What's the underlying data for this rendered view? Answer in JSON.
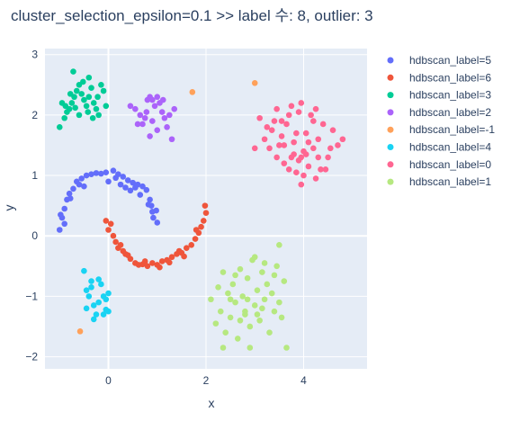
{
  "chart_data": {
    "type": "scatter",
    "title": "cluster_selection_epsilon=0.1 >> label 수: 8, outlier: 3",
    "xlabel": "x",
    "ylabel": "y",
    "xlim": [
      -1.3,
      5.3
    ],
    "ylim": [
      -2.2,
      3.1
    ],
    "x_ticks": [
      0,
      2,
      4
    ],
    "y_ticks": [
      -2,
      -1,
      0,
      1,
      2,
      3
    ],
    "grid": true,
    "legend_position": "right",
    "series": [
      {
        "name": "hdbscan_label=5",
        "color": "#636efa",
        "points": [
          [
            -1.0,
            0.1
          ],
          [
            -0.95,
            0.3
          ],
          [
            -0.9,
            0.45
          ],
          [
            -0.85,
            0.6
          ],
          [
            -0.8,
            0.7
          ],
          [
            -0.72,
            0.78
          ],
          [
            -0.65,
            0.9
          ],
          [
            -0.55,
            0.95
          ],
          [
            -0.45,
            1.0
          ],
          [
            -0.35,
            1.02
          ],
          [
            -0.25,
            1.04
          ],
          [
            -0.15,
            1.03
          ],
          [
            -0.05,
            1.05
          ],
          [
            0.1,
            1.08
          ],
          [
            0.2,
            1.02
          ],
          [
            0.3,
            0.98
          ],
          [
            0.4,
            0.92
          ],
          [
            0.5,
            0.88
          ],
          [
            0.6,
            0.85
          ],
          [
            0.7,
            0.82
          ],
          [
            0.78,
            0.76
          ],
          [
            0.85,
            0.6
          ],
          [
            0.88,
            0.5
          ],
          [
            0.9,
            0.4
          ],
          [
            0.92,
            0.3
          ],
          [
            0.98,
            0.42
          ],
          [
            1.0,
            0.22
          ],
          [
            -0.9,
            0.2
          ],
          [
            -0.78,
            0.62
          ],
          [
            -0.6,
            0.85
          ],
          [
            0.0,
            0.9
          ],
          [
            0.25,
            0.85
          ],
          [
            0.45,
            0.75
          ],
          [
            0.55,
            0.8
          ],
          [
            0.65,
            0.68
          ],
          [
            0.82,
            0.52
          ],
          [
            -0.98,
            0.35
          ],
          [
            -0.5,
            0.82
          ],
          [
            0.15,
            0.96
          ],
          [
            0.35,
            0.8
          ]
        ]
      },
      {
        "name": "hdbscan_label=6",
        "color": "#ef553b",
        "points": [
          [
            -0.05,
            0.25
          ],
          [
            0.0,
            0.1
          ],
          [
            0.1,
            0.0
          ],
          [
            0.15,
            -0.1
          ],
          [
            0.2,
            -0.2
          ],
          [
            0.3,
            -0.25
          ],
          [
            0.35,
            -0.3
          ],
          [
            0.45,
            -0.38
          ],
          [
            0.55,
            -0.45
          ],
          [
            0.62,
            -0.48
          ],
          [
            0.7,
            -0.47
          ],
          [
            0.8,
            -0.5
          ],
          [
            0.9,
            -0.45
          ],
          [
            1.0,
            -0.48
          ],
          [
            1.1,
            -0.42
          ],
          [
            1.2,
            -0.4
          ],
          [
            1.3,
            -0.35
          ],
          [
            1.4,
            -0.3
          ],
          [
            1.5,
            -0.28
          ],
          [
            1.6,
            -0.2
          ],
          [
            1.7,
            -0.15
          ],
          [
            1.78,
            -0.05
          ],
          [
            1.85,
            0.05
          ],
          [
            1.9,
            0.15
          ],
          [
            1.95,
            0.25
          ],
          [
            2.0,
            0.38
          ],
          [
            1.98,
            0.5
          ],
          [
            0.25,
            -0.15
          ],
          [
            0.4,
            -0.32
          ],
          [
            0.75,
            -0.42
          ],
          [
            1.05,
            -0.52
          ],
          [
            1.25,
            -0.44
          ],
          [
            1.45,
            -0.25
          ],
          [
            1.55,
            -0.34
          ],
          [
            1.8,
            0.1
          ],
          [
            0.05,
            0.2
          ]
        ]
      },
      {
        "name": "hdbscan_label=3",
        "color": "#00cc96",
        "points": [
          [
            -0.8,
            2.1
          ],
          [
            -0.75,
            2.2
          ],
          [
            -0.7,
            2.3
          ],
          [
            -0.65,
            2.4
          ],
          [
            -0.6,
            2.5
          ],
          [
            -0.55,
            2.35
          ],
          [
            -0.5,
            2.25
          ],
          [
            -0.45,
            2.15
          ],
          [
            -0.4,
            2.3
          ],
          [
            -0.35,
            2.45
          ],
          [
            -0.3,
            2.2
          ],
          [
            -0.25,
            2.1
          ],
          [
            -0.2,
            2.0
          ],
          [
            -0.15,
            2.5
          ],
          [
            -0.1,
            2.4
          ],
          [
            -0.05,
            2.15
          ],
          [
            -0.85,
            2.05
          ],
          [
            -0.9,
            1.95
          ],
          [
            -1.0,
            1.8
          ],
          [
            -0.95,
            2.2
          ],
          [
            -0.72,
            2.72
          ],
          [
            -0.6,
            2.0
          ],
          [
            -0.42,
            2.05
          ],
          [
            -0.32,
            1.95
          ],
          [
            -0.22,
            2.3
          ],
          [
            -0.68,
            2.12
          ],
          [
            -0.52,
            2.55
          ],
          [
            -0.78,
            2.35
          ],
          [
            -0.4,
            2.62
          ],
          [
            -0.88,
            2.15
          ]
        ]
      },
      {
        "name": "hdbscan_label=2",
        "color": "#ab63fa",
        "points": [
          [
            0.45,
            2.15
          ],
          [
            0.55,
            2.1
          ],
          [
            0.65,
            2.0
          ],
          [
            0.7,
            1.85
          ],
          [
            0.75,
            1.95
          ],
          [
            0.8,
            2.25
          ],
          [
            0.85,
            2.3
          ],
          [
            0.9,
            2.25
          ],
          [
            0.95,
            2.15
          ],
          [
            1.0,
            2.3
          ],
          [
            1.05,
            2.2
          ],
          [
            1.1,
            2.05
          ],
          [
            1.15,
            1.95
          ],
          [
            1.2,
            1.8
          ],
          [
            1.3,
            1.6
          ],
          [
            0.6,
            1.85
          ],
          [
            0.85,
            1.65
          ],
          [
            1.0,
            1.75
          ],
          [
            1.25,
            2.0
          ],
          [
            0.9,
            1.9
          ],
          [
            1.35,
            2.1
          ],
          [
            0.78,
            2.05
          ],
          [
            1.12,
            2.25
          ]
        ]
      },
      {
        "name": "hdbscan_label=-1",
        "color": "#ffa15a",
        "points": [
          [
            1.72,
            2.38
          ],
          [
            3.0,
            2.53
          ],
          [
            -0.58,
            -1.58
          ]
        ]
      },
      {
        "name": "hdbscan_label=4",
        "color": "#19d3f3",
        "points": [
          [
            -0.5,
            -0.58
          ],
          [
            -0.45,
            -0.9
          ],
          [
            -0.4,
            -1.0
          ],
          [
            -0.35,
            -0.85
          ],
          [
            -0.3,
            -1.15
          ],
          [
            -0.25,
            -1.3
          ],
          [
            -0.2,
            -1.1
          ],
          [
            -0.15,
            -0.8
          ],
          [
            -0.1,
            -1.0
          ],
          [
            -0.05,
            -1.05
          ],
          [
            0.0,
            -0.95
          ],
          [
            0.0,
            -1.25
          ],
          [
            -0.45,
            -1.2
          ],
          [
            -0.3,
            -1.38
          ],
          [
            -0.1,
            -1.3
          ],
          [
            -0.2,
            -0.72
          ],
          [
            -0.35,
            -0.75
          ],
          [
            -0.05,
            -1.22
          ]
        ]
      },
      {
        "name": "hdbscan_label=0",
        "color": "#ff6692",
        "points": [
          [
            3.1,
            1.95
          ],
          [
            3.2,
            1.6
          ],
          [
            3.25,
            1.8
          ],
          [
            3.3,
            1.45
          ],
          [
            3.35,
            1.75
          ],
          [
            3.4,
            1.9
          ],
          [
            3.45,
            2.1
          ],
          [
            3.5,
            1.5
          ],
          [
            3.55,
            1.65
          ],
          [
            3.6,
            1.2
          ],
          [
            3.65,
            1.85
          ],
          [
            3.7,
            2.0
          ],
          [
            3.75,
            1.3
          ],
          [
            3.8,
            1.55
          ],
          [
            3.85,
            1.05
          ],
          [
            3.9,
            1.25
          ],
          [
            3.95,
            2.2
          ],
          [
            4.0,
            1.4
          ],
          [
            4.05,
            1.7
          ],
          [
            4.1,
            1.15
          ],
          [
            4.15,
            2.0
          ],
          [
            4.2,
            1.45
          ],
          [
            4.25,
            0.95
          ],
          [
            4.3,
            1.6
          ],
          [
            4.35,
            1.1
          ],
          [
            4.4,
            1.85
          ],
          [
            4.5,
            1.3
          ],
          [
            4.6,
            1.75
          ],
          [
            4.7,
            1.5
          ],
          [
            4.8,
            1.6
          ],
          [
            3.0,
            1.45
          ],
          [
            3.9,
            2.05
          ],
          [
            4.0,
            1.0
          ],
          [
            4.05,
            1.35
          ],
          [
            3.7,
            1.1
          ],
          [
            3.95,
            1.3
          ],
          [
            4.3,
            1.3
          ],
          [
            3.85,
            1.7
          ],
          [
            3.6,
            1.5
          ],
          [
            4.45,
            1.1
          ],
          [
            3.75,
            2.15
          ],
          [
            4.1,
            1.55
          ],
          [
            3.55,
            1.9
          ],
          [
            4.2,
            1.9
          ],
          [
            3.95,
            0.85
          ],
          [
            4.55,
            1.45
          ],
          [
            3.8,
            1.35
          ],
          [
            4.25,
            2.1
          ],
          [
            3.45,
            1.3
          ]
        ]
      },
      {
        "name": "hdbscan_label=1",
        "color": "#b6e880",
        "points": [
          [
            2.1,
            -1.05
          ],
          [
            2.2,
            -1.45
          ],
          [
            2.25,
            -0.85
          ],
          [
            2.3,
            -1.25
          ],
          [
            2.35,
            -0.6
          ],
          [
            2.4,
            -1.6
          ],
          [
            2.45,
            -0.95
          ],
          [
            2.5,
            -1.35
          ],
          [
            2.55,
            -0.8
          ],
          [
            2.6,
            -1.1
          ],
          [
            2.65,
            -1.7
          ],
          [
            2.7,
            -0.55
          ],
          [
            2.75,
            -1.0
          ],
          [
            2.8,
            -1.3
          ],
          [
            2.85,
            -0.7
          ],
          [
            2.9,
            -1.5
          ],
          [
            2.95,
            -0.4
          ],
          [
            3.0,
            -1.15
          ],
          [
            3.05,
            -0.9
          ],
          [
            3.1,
            -1.4
          ],
          [
            3.15,
            -0.6
          ],
          [
            3.2,
            -1.05
          ],
          [
            3.25,
            -0.8
          ],
          [
            3.3,
            -1.6
          ],
          [
            3.35,
            -0.95
          ],
          [
            3.4,
            -1.25
          ],
          [
            3.45,
            -0.5
          ],
          [
            3.5,
            -1.1
          ],
          [
            3.55,
            -1.35
          ],
          [
            3.6,
            -0.75
          ],
          [
            2.35,
            -1.85
          ],
          [
            2.9,
            -1.85
          ],
          [
            3.65,
            -1.85
          ],
          [
            3.0,
            -0.35
          ],
          [
            2.6,
            -0.65
          ],
          [
            2.8,
            -1.25
          ],
          [
            3.05,
            -1.3
          ],
          [
            2.5,
            -1.05
          ],
          [
            3.2,
            -0.45
          ],
          [
            2.7,
            -1.4
          ],
          [
            3.4,
            -0.65
          ],
          [
            3.5,
            -0.15
          ],
          [
            2.85,
            -1.05
          ],
          [
            3.15,
            -1.2
          ]
        ]
      }
    ]
  }
}
